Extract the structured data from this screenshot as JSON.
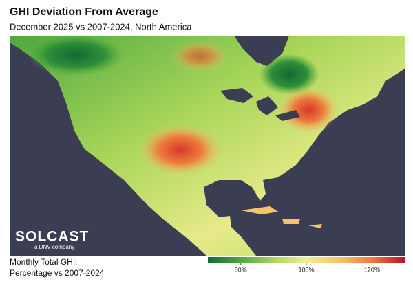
{
  "header": {
    "title": "GHI Deviation From Average",
    "subtitle": "December 2025 vs 2007-2024, North America"
  },
  "logo": {
    "name": "SOLCAST",
    "tagline": "a DNV company"
  },
  "legend": {
    "label_lines": [
      "Monthly Total GHI:",
      "Percentage vs 2007-2024"
    ],
    "range": [
      70,
      130
    ],
    "ticks": [
      {
        "value": 80,
        "label": "80%"
      },
      {
        "value": 100,
        "label": "100%"
      },
      {
        "value": 120,
        "label": "120%"
      }
    ],
    "colors": [
      "#0f6b33",
      "#4ea83e",
      "#a9d65a",
      "#f1ef8f",
      "#f7c36a",
      "#ee7a3c",
      "#b8152a"
    ]
  }
}
